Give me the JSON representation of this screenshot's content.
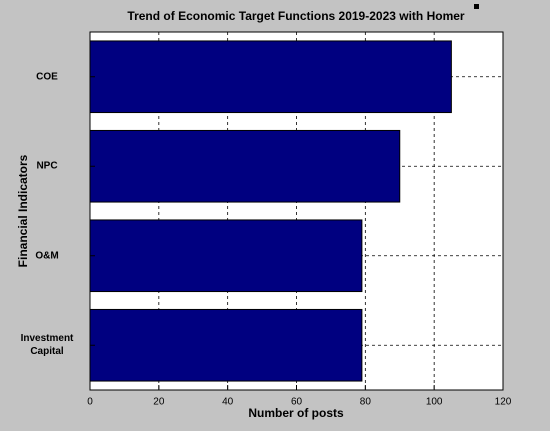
{
  "chart_data": {
    "type": "barh",
    "title": "Trend of Economic Target Functions 2019-2023 with Homer",
    "xlabel": "Number of posts",
    "ylabel": "Financial Indicators",
    "categories": [
      "COE",
      "NPC",
      "O&M",
      "Investment Capital"
    ],
    "values": [
      105,
      90,
      79,
      79
    ],
    "color": "#000080",
    "xlim": [
      0,
      120
    ],
    "xticks": [
      0,
      20,
      40,
      60,
      80,
      100,
      120
    ],
    "grid": true
  }
}
